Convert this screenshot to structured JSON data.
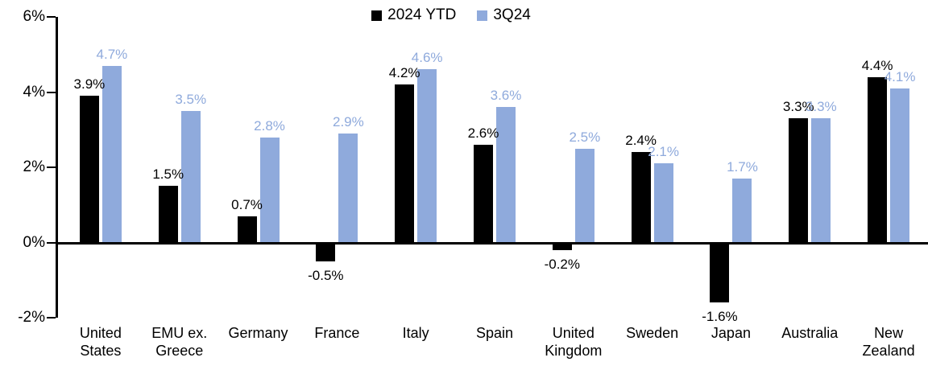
{
  "chart_data": {
    "type": "bar",
    "categories": [
      "United States",
      "EMU ex. Greece",
      "Germany",
      "France",
      "Italy",
      "Spain",
      "United Kingdom",
      "Sweden",
      "Japan",
      "Australia",
      "New Zealand"
    ],
    "series": [
      {
        "name": "2024 YTD",
        "color": "#000000",
        "values": [
          3.9,
          1.5,
          0.7,
          -0.5,
          4.2,
          2.6,
          -0.2,
          2.4,
          -1.6,
          3.3,
          4.4
        ],
        "labels": [
          "3.9%",
          "1.5%",
          "0.7%",
          "-0.5%",
          "4.2%",
          "2.6%",
          "-0.2%",
          "2.4%",
          "-1.6%",
          "3.3%",
          "4.4%"
        ]
      },
      {
        "name": "3Q24",
        "color": "#8FAADC",
        "values": [
          4.7,
          3.5,
          2.8,
          2.9,
          4.6,
          3.6,
          2.5,
          2.1,
          1.7,
          3.3,
          4.1
        ],
        "labels": [
          "4.7%",
          "3.5%",
          "2.8%",
          "2.9%",
          "4.6%",
          "3.6%",
          "2.5%",
          "2.1%",
          "1.7%",
          "3.3%",
          "4.1%"
        ]
      }
    ],
    "y_axis": {
      "ticks": [
        "6%",
        "4%",
        "2%",
        "0%",
        "-2%"
      ],
      "tick_values": [
        6,
        4,
        2,
        0,
        -2
      ],
      "min": -2,
      "max": 6
    },
    "legend_position": "top-center",
    "grid": false,
    "value_label_format": "percent_one_decimal"
  }
}
